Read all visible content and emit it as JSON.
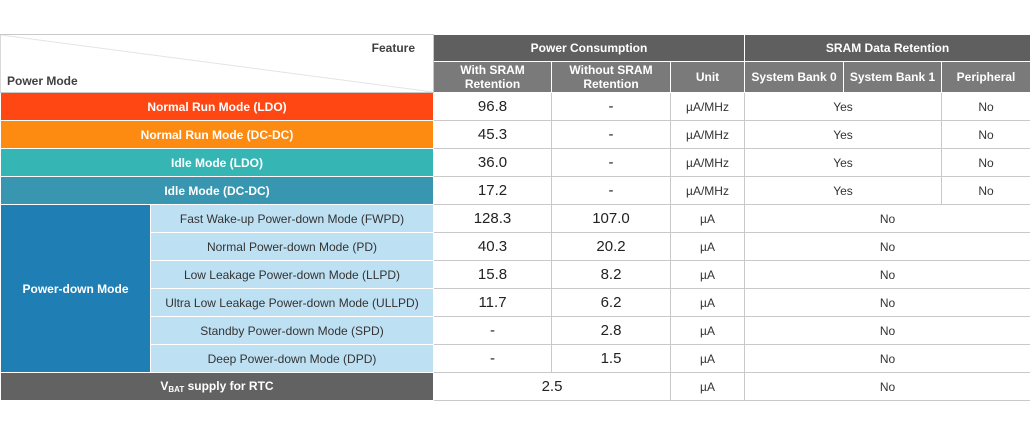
{
  "header": {
    "feature_label": "Feature",
    "power_mode_label": "Power Mode",
    "power_consumption": "Power Consumption",
    "sram_retention": "SRAM Data Retention",
    "with_sram_line1": "With SRAM",
    "with_sram_line2": "Retention",
    "without_sram_line1": "Without SRAM",
    "without_sram_line2": "Retention",
    "unit": "Unit",
    "system_bank0": "System Bank 0",
    "system_bank1": "System Bank 1",
    "peripheral": "Peripheral"
  },
  "top_rows": [
    {
      "mode": "Normal Run Mode (LDO)",
      "color": "#fe4713",
      "with": "96.8",
      "without": "-",
      "unit": "µA/MHz",
      "system": "Yes",
      "peripheral": "No"
    },
    {
      "mode": "Normal Run Mode (DC-DC)",
      "color": "#fd8b11",
      "with": "45.3",
      "without": "-",
      "unit": "µA/MHz",
      "system": "Yes",
      "peripheral": "No"
    },
    {
      "mode": "Idle Mode (LDO)",
      "color": "#35b5b3",
      "with": "36.0",
      "without": "-",
      "unit": "µA/MHz",
      "system": "Yes",
      "peripheral": "No"
    },
    {
      "mode": "Idle Mode (DC-DC)",
      "color": "#3896b0",
      "with": "17.2",
      "without": "-",
      "unit": "µA/MHz",
      "system": "Yes",
      "peripheral": "No"
    }
  ],
  "power_down": {
    "label": "Power-down Mode",
    "color": "#1f7fb4",
    "sub_color": "#bee0f3",
    "rows": [
      {
        "mode": "Fast Wake-up Power-down Mode (FWPD)",
        "with": "128.3",
        "without": "107.0",
        "unit": "µA",
        "retention": "No"
      },
      {
        "mode": "Normal Power-down Mode (PD)",
        "with": "40.3",
        "without": "20.2",
        "unit": "µA",
        "retention": "No"
      },
      {
        "mode": "Low Leakage Power-down Mode (LLPD)",
        "with": "15.8",
        "without": "8.2",
        "unit": "µA",
        "retention": "No"
      },
      {
        "mode": "Ultra Low Leakage Power-down Mode (ULLPD)",
        "with": "11.7",
        "without": "6.2",
        "unit": "µA",
        "retention": "No"
      },
      {
        "mode": "Standby Power-down Mode (SPD)",
        "with": "-",
        "without": "2.8",
        "unit": "µA",
        "retention": "No"
      },
      {
        "mode": "Deep Power-down Mode (DPD)",
        "with": "-",
        "without": "1.5",
        "unit": "µA",
        "retention": "No"
      }
    ]
  },
  "vbat": {
    "label_v": "V",
    "label_sub": "BAT",
    "label_rest": " supply for RTC",
    "value": "2.5",
    "unit": "µA",
    "retention": "No"
  }
}
